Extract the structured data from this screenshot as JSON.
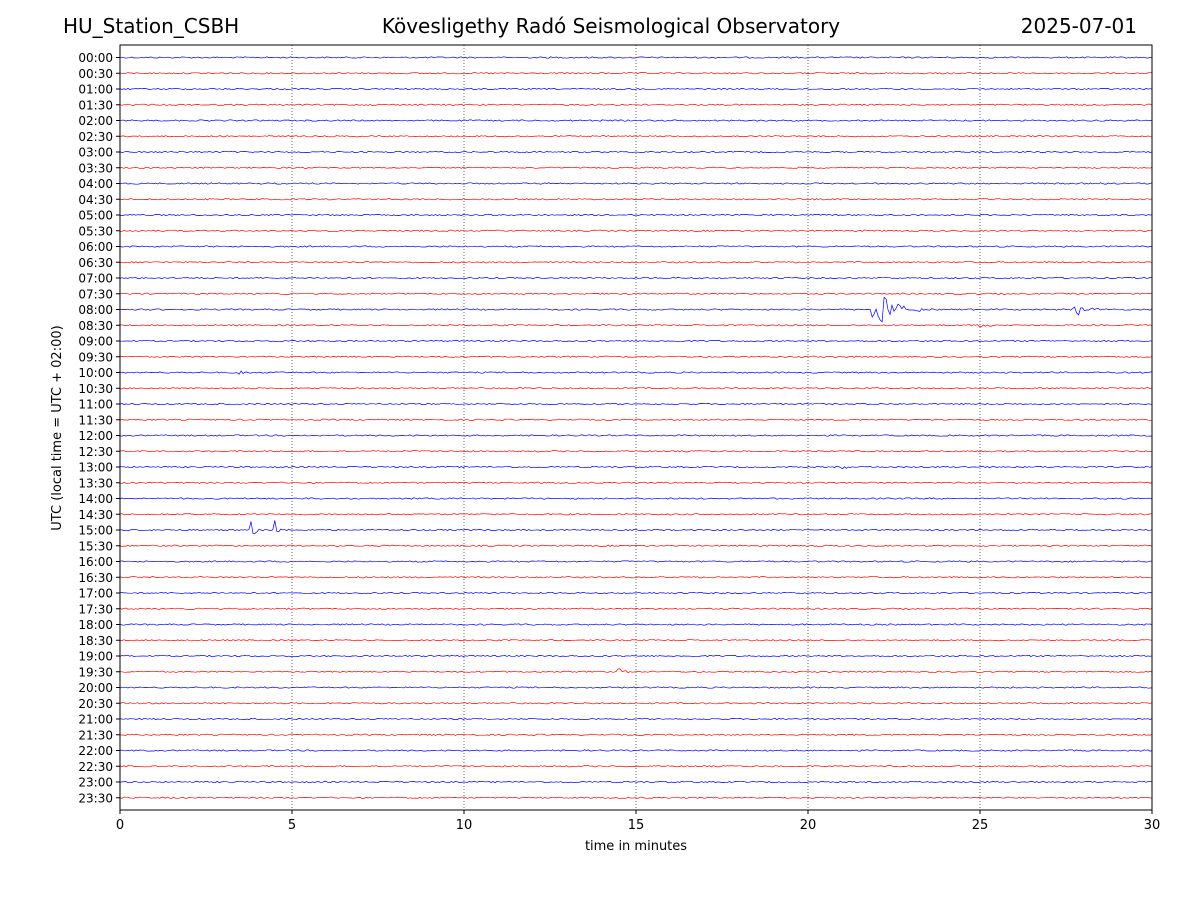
{
  "header": {
    "station": "HU_Station_CSBH",
    "observatory": "Kövesligethy Radó Seismological Observatory",
    "date": "2025-07-01"
  },
  "chart_data": {
    "type": "line",
    "title": "Kövesligethy Radó Seismological Observatory",
    "xlabel": "time in minutes",
    "ylabel": "UTC (local time = UTC + 02:00)",
    "xlim": [
      0,
      30
    ],
    "x_ticks": [
      "0",
      "5",
      "10",
      "15",
      "20",
      "25",
      "30"
    ],
    "x_gridlines": [
      5,
      10,
      15,
      20,
      25
    ],
    "grid": "vertical dotted",
    "trace_colors": [
      "#0000ff",
      "#ff0000"
    ],
    "rows": [
      "00:00",
      "00:30",
      "01:00",
      "01:30",
      "02:00",
      "02:30",
      "03:00",
      "03:30",
      "04:00",
      "04:30",
      "05:00",
      "05:30",
      "06:00",
      "06:30",
      "07:00",
      "07:30",
      "08:00",
      "08:30",
      "09:00",
      "09:30",
      "10:00",
      "10:30",
      "11:00",
      "11:30",
      "12:00",
      "12:30",
      "13:00",
      "13:30",
      "14:00",
      "14:30",
      "15:00",
      "15:30",
      "16:00",
      "16:30",
      "17:00",
      "17:30",
      "18:00",
      "18:30",
      "19:00",
      "19:30",
      "20:00",
      "20:30",
      "21:00",
      "21:30",
      "22:00",
      "22:30",
      "23:00",
      "23:30"
    ],
    "events": [
      {
        "row": "08:00",
        "minute": 21.9,
        "duration": 1.5,
        "amplitude": 1.0
      },
      {
        "row": "08:00",
        "minute": 27.7,
        "duration": 1.0,
        "amplitude": 0.35
      },
      {
        "row": "08:30",
        "minute": 25.0,
        "duration": 0.6,
        "amplitude": 0.12
      },
      {
        "row": "15:00",
        "minute": 3.85,
        "duration": 0.25,
        "amplitude": 0.4
      },
      {
        "row": "15:00",
        "minute": 4.5,
        "duration": 0.2,
        "amplitude": 0.5
      },
      {
        "row": "19:30",
        "minute": 14.5,
        "duration": 0.6,
        "amplitude": 0.12
      },
      {
        "row": "10:00",
        "minute": 3.5,
        "duration": 1.0,
        "amplitude": 0.08
      },
      {
        "row": "13:00",
        "minute": 21.0,
        "duration": 0.5,
        "amplitude": 0.08
      }
    ]
  }
}
